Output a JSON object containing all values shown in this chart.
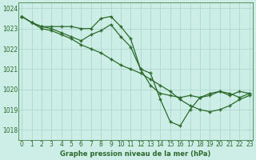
{
  "title": "Graphe pression niveau de la mer (hPa)",
  "bg_color": "#cceee6",
  "grid_color": "#aad4cc",
  "line_color": "#2d6a2d",
  "text_color": "#2d6a2d",
  "ylim": [
    1017.5,
    1024.3
  ],
  "xlim": [
    -0.3,
    23.3
  ],
  "yticks": [
    1018,
    1019,
    1020,
    1021,
    1022,
    1023,
    1024
  ],
  "xticks": [
    0,
    1,
    2,
    3,
    4,
    5,
    6,
    7,
    8,
    9,
    10,
    11,
    12,
    13,
    14,
    15,
    16,
    17,
    18,
    19,
    20,
    21,
    22,
    23
  ],
  "series": [
    [
      1023.6,
      1023.3,
      1023.1,
      1023.1,
      1023.1,
      1023.1,
      1023.0,
      1023.0,
      1023.5,
      1023.6,
      1023.1,
      1022.5,
      1021.0,
      1020.2,
      1019.8,
      1019.7,
      1019.6,
      1019.7,
      1019.6,
      1019.8,
      1019.9,
      1019.8,
      1019.6,
      1019.8
    ],
    [
      1023.6,
      1023.3,
      1023.1,
      1023.0,
      1022.8,
      1022.6,
      1022.4,
      1022.7,
      1022.9,
      1023.2,
      1022.6,
      1022.1,
      1021.0,
      1020.8,
      1019.5,
      1018.4,
      1018.2,
      1019.0,
      1019.6,
      1019.7,
      1019.9,
      1019.7,
      1019.9,
      1019.8
    ],
    [
      1023.6,
      1023.3,
      1023.0,
      1022.9,
      1022.7,
      1022.5,
      1022.2,
      1022.0,
      1021.8,
      1021.5,
      1021.2,
      1021.0,
      1020.8,
      1020.5,
      1020.2,
      1019.9,
      1019.5,
      1019.2,
      1019.0,
      1018.9,
      1019.0,
      1019.2,
      1019.5,
      1019.7
    ]
  ]
}
